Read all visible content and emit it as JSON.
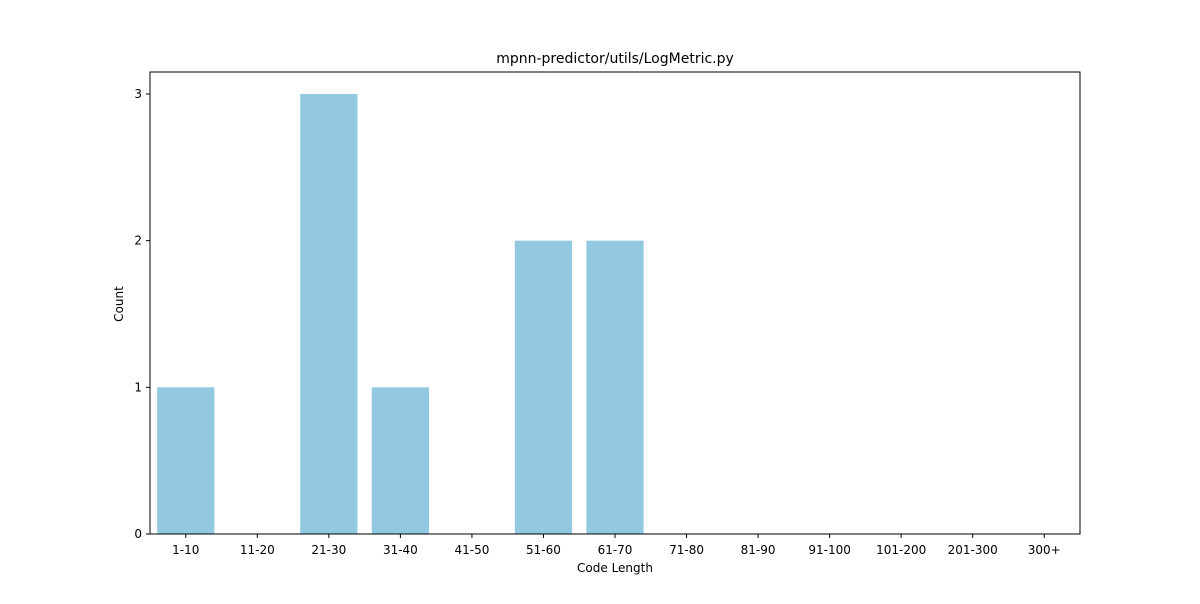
{
  "chart_data": {
    "type": "bar",
    "title": "mpnn-predictor/utils/LogMetric.py",
    "xlabel": "Code Length",
    "ylabel": "Count",
    "categories": [
      "1-10",
      "11-20",
      "21-30",
      "31-40",
      "41-50",
      "51-60",
      "61-70",
      "71-80",
      "81-90",
      "91-100",
      "101-200",
      "201-300",
      "300+"
    ],
    "values": [
      1,
      0,
      3,
      1,
      0,
      2,
      2,
      0,
      0,
      0,
      0,
      0,
      0
    ],
    "ylim": [
      0,
      3.15
    ],
    "yticks": [
      0,
      1,
      2,
      3
    ],
    "bar_color": "#92c9e0",
    "grid": false,
    "legend": "none"
  }
}
